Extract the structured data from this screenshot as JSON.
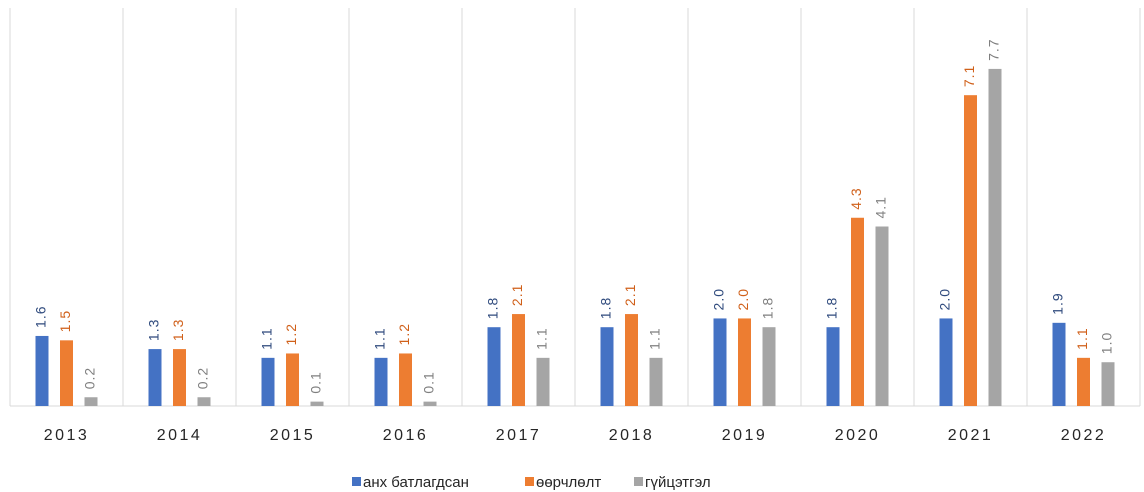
{
  "chart_data": {
    "type": "bar",
    "categories": [
      "2013",
      "2014",
      "2015",
      "2016",
      "2017",
      "2018",
      "2019",
      "2020",
      "2021",
      "2022"
    ],
    "series": [
      {
        "name": "анх батлагдсан",
        "color": "#4472c4",
        "label_color": "#2f4a7d",
        "values": [
          1.6,
          1.3,
          1.1,
          1.1,
          1.8,
          1.8,
          2.0,
          1.8,
          2.0,
          1.9
        ],
        "value_labels": [
          "1.6",
          "1.3",
          "1.1",
          "1.1",
          "1.8",
          "1.8",
          "2.0",
          "1.8",
          "2.0",
          "1.9"
        ]
      },
      {
        "name": "өөрчлөлт",
        "color": "#ed7d31",
        "label_color": "#d0601a",
        "values": [
          1.5,
          1.3,
          1.2,
          1.2,
          2.1,
          2.1,
          2.0,
          4.3,
          7.1,
          1.1
        ],
        "value_labels": [
          "1.5",
          "1.3",
          "1.2",
          "1.2",
          "2.1",
          "2.1",
          "2.0",
          "4.3",
          "7.1",
          "1.1"
        ]
      },
      {
        "name": "гүйцэтгэл",
        "color": "#a5a5a5",
        "label_color": "#7f7f7f",
        "values": [
          0.2,
          0.2,
          0.1,
          0.1,
          1.1,
          1.1,
          1.8,
          4.1,
          7.7,
          1.0
        ],
        "value_labels": [
          "0.2",
          "0.2",
          "0.1",
          "0.1",
          "1.1",
          "1.1",
          "1.8",
          "4.1",
          "7.7",
          "1.0"
        ]
      }
    ],
    "ylim": [
      0,
      9
    ],
    "legend": "bottom"
  }
}
